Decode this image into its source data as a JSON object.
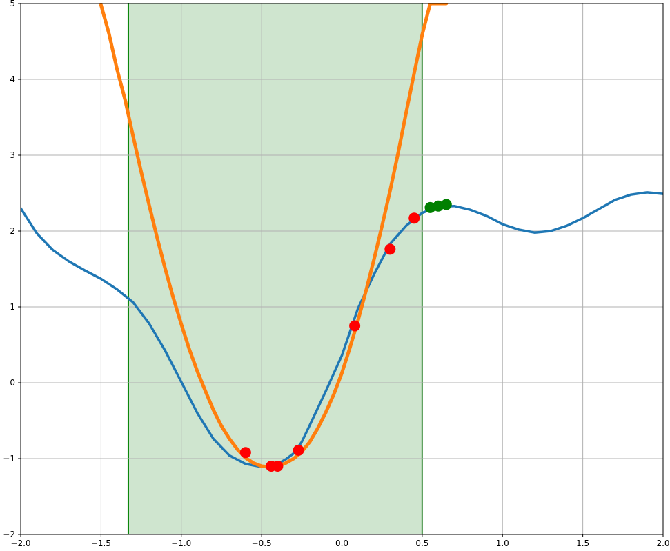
{
  "chart_data": {
    "type": "line",
    "title": "",
    "xlabel": "",
    "ylabel": "",
    "xlim": [
      -2,
      2
    ],
    "ylim": [
      -2,
      5
    ],
    "grid": true,
    "x_ticks": [
      -2.0,
      -1.5,
      -1.0,
      -0.5,
      0.0,
      0.5,
      1.0,
      1.5,
      2.0
    ],
    "x_tick_labels": [
      "−2.0",
      "−1.5",
      "−1.0",
      "−0.5",
      "0.0",
      "0.5",
      "1.0",
      "1.5",
      "2.0"
    ],
    "y_ticks": [
      -2,
      -1,
      0,
      1,
      2,
      3,
      4,
      5
    ],
    "y_tick_labels": [
      "−2",
      "−1",
      "0",
      "1",
      "2",
      "3",
      "4",
      "5"
    ],
    "shaded_region": {
      "x_start": -1.33,
      "x_end": 0.5,
      "color": "#cfe5cf",
      "edge_color": "#008000"
    },
    "series": [
      {
        "kind": "line",
        "color": "#1f77b4",
        "x": [
          -2.0,
          -1.9,
          -1.8,
          -1.7,
          -1.6,
          -1.5,
          -1.4,
          -1.3,
          -1.2,
          -1.1,
          -1.0,
          -0.9,
          -0.8,
          -0.7,
          -0.6,
          -0.5,
          -0.45,
          -0.4,
          -0.35,
          -0.3,
          -0.25,
          -0.2,
          -0.1,
          0.0,
          0.1,
          0.2,
          0.3,
          0.4,
          0.5,
          0.6,
          0.7,
          0.8,
          0.9,
          1.0,
          1.1,
          1.2,
          1.3,
          1.4,
          1.5,
          1.6,
          1.7,
          1.8,
          1.9,
          2.0
        ],
        "y": [
          2.3,
          1.97,
          1.75,
          1.6,
          1.48,
          1.37,
          1.23,
          1.06,
          0.78,
          0.42,
          0.01,
          -0.4,
          -0.74,
          -0.96,
          -1.07,
          -1.11,
          -1.1,
          -1.07,
          -1.01,
          -0.93,
          -0.78,
          -0.56,
          -0.11,
          0.36,
          0.98,
          1.43,
          1.83,
          2.07,
          2.24,
          2.32,
          2.33,
          2.28,
          2.2,
          2.09,
          2.02,
          1.98,
          2.0,
          2.07,
          2.17,
          2.29,
          2.41,
          2.48,
          2.51,
          2.49
        ]
      },
      {
        "kind": "line",
        "color": "#ff7f0e",
        "x": [
          -1.5,
          -1.45,
          -1.4,
          -1.35,
          -1.3,
          -1.25,
          -1.2,
          -1.15,
          -1.1,
          -1.05,
          -1.0,
          -0.95,
          -0.9,
          -0.85,
          -0.8,
          -0.75,
          -0.7,
          -0.65,
          -0.6,
          -0.55,
          -0.5,
          -0.45,
          -0.42,
          -0.4,
          -0.35,
          -0.3,
          -0.25,
          -0.2,
          -0.15,
          -0.1,
          -0.05,
          0.0,
          0.05,
          0.1,
          0.15,
          0.2,
          0.25,
          0.3,
          0.35,
          0.4,
          0.45,
          0.5,
          0.55,
          0.6,
          0.65
        ],
        "y": [
          4.98,
          4.6,
          4.13,
          3.73,
          3.25,
          2.78,
          2.34,
          1.91,
          1.5,
          1.12,
          0.77,
          0.44,
          0.15,
          -0.11,
          -0.36,
          -0.57,
          -0.74,
          -0.88,
          -0.99,
          -1.06,
          -1.1,
          -1.11,
          -1.11,
          -1.1,
          -1.06,
          -1.0,
          -0.91,
          -0.78,
          -0.6,
          -0.39,
          -0.15,
          0.13,
          0.46,
          0.82,
          1.21,
          1.63,
          2.07,
          2.53,
          3.03,
          3.56,
          4.08,
          4.59,
          5.0,
          5.0,
          5.0
        ]
      }
    ],
    "points": [
      {
        "color": "#ff0000",
        "x": [
          -0.6,
          -0.44,
          -0.4,
          -0.27,
          0.08,
          0.3,
          0.45
        ],
        "y": [
          -0.92,
          -1.1,
          -1.1,
          -0.89,
          0.75,
          1.76,
          2.17
        ]
      },
      {
        "color": "#008000",
        "x": [
          0.55,
          0.6,
          0.65
        ],
        "y": [
          2.31,
          2.33,
          2.35
        ]
      }
    ],
    "colors": {
      "grid": "#b0b0b0",
      "axes": "#000000",
      "background": "#ffffff"
    }
  }
}
